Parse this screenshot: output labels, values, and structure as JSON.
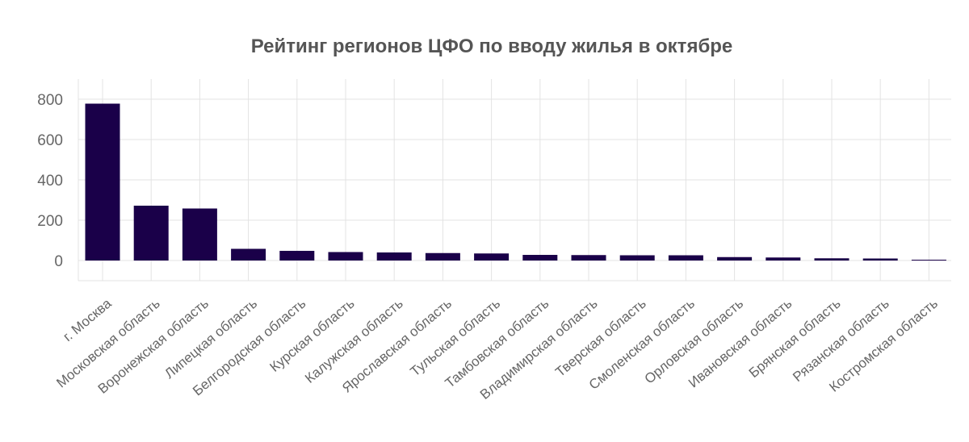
{
  "chart_data": {
    "type": "bar",
    "title": "Рейтинг регионов ЦФО по вводу жилья в октябре",
    "xlabel": "",
    "ylabel": "",
    "categories": [
      "г. Москва",
      "Московская область",
      "Воронежская область",
      "Липецкая область",
      "Белгородская область",
      "Курская область",
      "Калужская область",
      "Ярославская область",
      "Тульская область",
      "Тамбовская область",
      "Владимирская область",
      "Тверская область",
      "Смоленская область",
      "Орловская область",
      "Ивановская область",
      "Брянская область",
      "Рязанская область",
      "Костромская область"
    ],
    "values": [
      778,
      272,
      258,
      58,
      48,
      42,
      40,
      37,
      35,
      28,
      27,
      26,
      26,
      17,
      15,
      11,
      10,
      3
    ],
    "yticks": [
      0,
      200,
      400,
      600,
      800
    ],
    "ylim": [
      -100,
      900
    ],
    "grid": true,
    "legend": "none",
    "bar_color": "#1a0049"
  }
}
